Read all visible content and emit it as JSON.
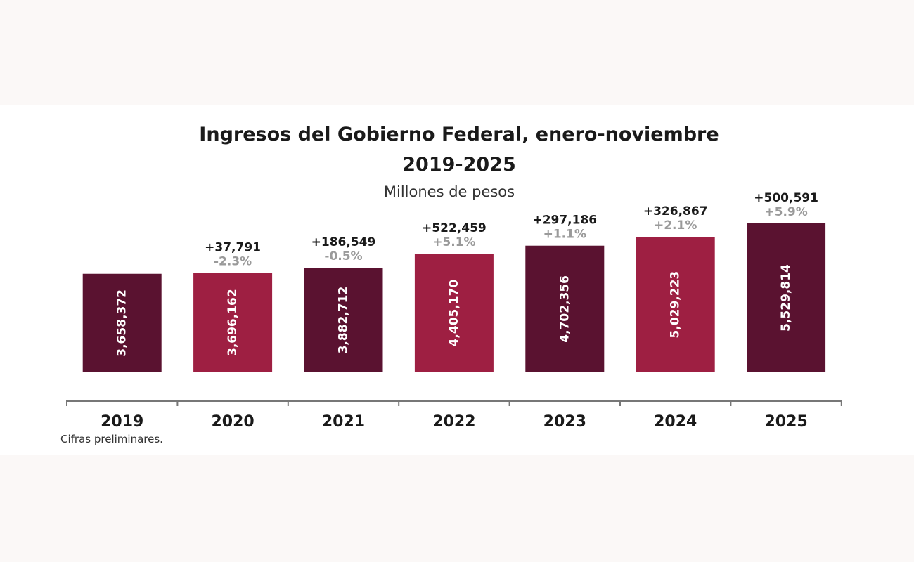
{
  "chart_data": {
    "type": "bar",
    "title": "Ingresos del Gobierno Federal, enero-noviembre",
    "subtitle": "2019-2025",
    "unit_label": "Millones de pesos",
    "categories": [
      "2019",
      "2020",
      "2021",
      "2022",
      "2023",
      "2024",
      "2025"
    ],
    "values": [
      3658372,
      3696162,
      3882712,
      4405170,
      4702356,
      5029223,
      5529814
    ],
    "value_labels": [
      "3,658,372",
      "3,696,162",
      "3,882,712",
      "4,405,170",
      "4,702,356",
      "5,029,223",
      "5,529,814"
    ],
    "change_labels": [
      "",
      "+37,791",
      "+186,549",
      "+522,459",
      "+297,186",
      "+326,867",
      "+500,591"
    ],
    "pct_labels": [
      "",
      "-2.3%",
      "-0.5%",
      "+5.1%",
      "+1.1%",
      "+2.1%",
      "+5.9%"
    ],
    "bar_colors": [
      "#5a1230",
      "#9e1f42",
      "#5a1230",
      "#9e1f42",
      "#5a1230",
      "#9e1f42",
      "#5a1230"
    ],
    "ylim": [
      0,
      5529814
    ],
    "grid": false,
    "footnote": "Cifras preliminares."
  }
}
